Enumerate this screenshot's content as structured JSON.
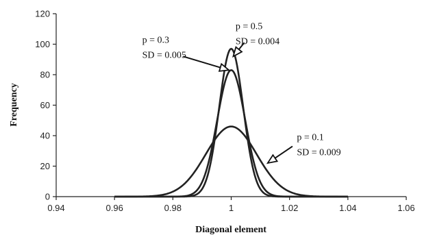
{
  "chart_data": {
    "type": "line",
    "xlabel": "Diagonal element",
    "ylabel": "Frequency",
    "xlim": [
      0.94,
      1.06
    ],
    "ylim": [
      0,
      120
    ],
    "x_ticks": [
      "0.94",
      "0.96",
      "0.98",
      "1",
      "1.02",
      "1.04",
      "1.06"
    ],
    "y_ticks": [
      "0",
      "20",
      "40",
      "60",
      "80",
      "100",
      "120"
    ],
    "grid": false,
    "series": [
      {
        "p": "p = 0.1",
        "sd_label": "SD = 0.009",
        "mean": 1.0,
        "sd": 0.0087,
        "peak": 46,
        "x_range": [
          0.96,
          1.04
        ]
      },
      {
        "p": "p = 0.3",
        "sd_label": "SD = 0.005",
        "mean": 1.0,
        "sd": 0.0048,
        "peak": 83,
        "x_range": [
          0.96,
          1.04
        ]
      },
      {
        "p": "p = 0.5",
        "sd_label": "SD = 0.004",
        "mean": 1.0,
        "sd": 0.0041,
        "peak": 97,
        "x_range": [
          0.96,
          1.04
        ]
      }
    ],
    "annotations": [
      {
        "lines": [
          "p = 0.3",
          "SD = 0.005"
        ],
        "text_x": 0.9695,
        "text_y": 101,
        "arrow_from": [
          0.9835,
          92
        ],
        "arrow_to": [
          0.9992,
          83
        ]
      },
      {
        "lines": [
          "p = 0.5",
          "SD = 0.004"
        ],
        "text_x": 1.0015,
        "text_y": 110,
        "arrow_from": [
          1.0045,
          101
        ],
        "arrow_to": [
          1.0007,
          92
        ]
      },
      {
        "lines": [
          "p = 0.1",
          "SD = 0.009"
        ],
        "text_x": 1.0225,
        "text_y": 37,
        "arrow_from": [
          1.021,
          33
        ],
        "arrow_to": [
          1.0125,
          22
        ]
      }
    ]
  }
}
